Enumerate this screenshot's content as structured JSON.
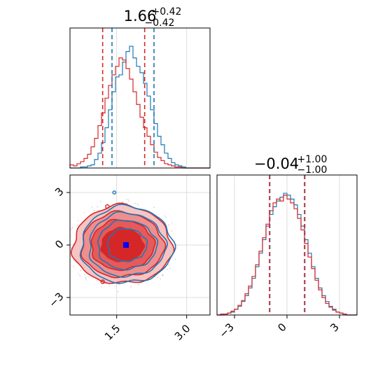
{
  "chart_data": [
    {
      "type": "histogram",
      "panel": "top-left marginal",
      "title_value": "1.66",
      "title_plus": "+0.42",
      "title_minus": "−0.42",
      "xlim": [
        0.5,
        3.5
      ],
      "grid": true,
      "series": [
        {
          "color": "#1f77b4",
          "quantile_lines": [
            1.4,
            2.3
          ]
        },
        {
          "color": "#d62728",
          "quantile_lines": [
            1.2,
            2.1
          ]
        }
      ],
      "bins": [
        0.5,
        0.575,
        0.65,
        0.725,
        0.8,
        0.875,
        0.95,
        1.025,
        1.1,
        1.175,
        1.25,
        1.325,
        1.4,
        1.475,
        1.55,
        1.625,
        1.7,
        1.775,
        1.85,
        1.925,
        2.0,
        2.075,
        2.15,
        2.225,
        2.3,
        2.375,
        2.45,
        2.525,
        2.6,
        2.675,
        2.75,
        2.825,
        2.9,
        2.975,
        3.05,
        3.125,
        3.2,
        3.275,
        3.35,
        3.425,
        3.5
      ],
      "blue_counts": [
        0,
        0,
        0,
        1,
        1,
        2,
        3,
        8,
        14,
        24,
        38,
        55,
        72,
        86,
        88,
        100,
        110,
        115,
        104,
        96,
        90,
        80,
        68,
        55,
        42,
        30,
        22,
        14,
        9,
        5,
        3,
        2,
        1,
        0,
        0,
        0,
        0,
        0,
        0,
        0
      ],
      "red_counts": [
        3,
        2,
        4,
        6,
        9,
        13,
        20,
        28,
        40,
        52,
        66,
        78,
        88,
        96,
        104,
        102,
        94,
        84,
        72,
        60,
        48,
        38,
        30,
        22,
        15,
        10,
        7,
        4,
        3,
        2,
        1,
        1,
        0,
        0,
        0,
        0,
        0,
        0,
        0,
        0
      ]
    },
    {
      "type": "histogram",
      "panel": "bottom-right marginal",
      "title_value": "−0.04",
      "title_plus": "+1.00",
      "title_minus": "−1.00",
      "xlim": [
        -4.0,
        4.0
      ],
      "x_ticks": [
        -3,
        0,
        3
      ],
      "x_tick_labels": [
        "−3",
        "0",
        "3"
      ],
      "grid": true,
      "series": [
        {
          "color": "#1f77b4",
          "quantile_lines": [
            -1.0,
            1.0
          ]
        },
        {
          "color": "#d62728",
          "quantile_lines": [
            -1.0,
            1.0
          ]
        }
      ],
      "bins": [
        -4.0,
        -3.8,
        -3.6,
        -3.4,
        -3.2,
        -3.0,
        -2.8,
        -2.6,
        -2.4,
        -2.2,
        -2.0,
        -1.8,
        -1.6,
        -1.4,
        -1.2,
        -1.0,
        -0.8,
        -0.6,
        -0.4,
        -0.2,
        0.0,
        0.2,
        0.4,
        0.6,
        0.8,
        1.0,
        1.2,
        1.4,
        1.6,
        1.8,
        2.0,
        2.2,
        2.4,
        2.6,
        2.8,
        3.0,
        3.2,
        3.4,
        3.6,
        3.8,
        4.0
      ],
      "blue_counts": [
        0,
        0,
        1,
        2,
        3,
        6,
        9,
        14,
        20,
        28,
        38,
        50,
        64,
        78,
        92,
        104,
        112,
        118,
        122,
        126,
        124,
        120,
        114,
        104,
        92,
        78,
        64,
        50,
        38,
        28,
        20,
        14,
        9,
        6,
        3,
        2,
        1,
        0,
        0,
        0
      ],
      "red_counts": [
        0,
        1,
        1,
        2,
        4,
        6,
        10,
        15,
        22,
        30,
        40,
        52,
        66,
        80,
        94,
        108,
        116,
        120,
        118,
        124,
        120,
        116,
        110,
        100,
        88,
        74,
        60,
        48,
        36,
        26,
        18,
        12,
        8,
        5,
        3,
        2,
        1,
        0,
        0,
        0
      ]
    },
    {
      "type": "contour",
      "panel": "bottom-left joint",
      "xlim": [
        0.5,
        3.5
      ],
      "ylim": [
        -4.0,
        4.0
      ],
      "x_ticks": [
        1.5,
        3.0
      ],
      "x_tick_labels": [
        "1.5",
        "3.0"
      ],
      "y_ticks": [
        -3,
        0,
        3
      ],
      "y_tick_labels": [
        "−3",
        "0",
        "3"
      ],
      "grid": true,
      "marker": {
        "x": 1.7,
        "y": 0.0,
        "color": "#0000ff"
      },
      "series": [
        {
          "color": "#1f77b4",
          "center": [
            1.72,
            0.0
          ],
          "sigma": [
            0.42,
            1.0
          ]
        },
        {
          "color": "#d62728",
          "center": [
            1.62,
            0.0
          ],
          "sigma": [
            0.45,
            1.0
          ]
        }
      ]
    }
  ]
}
